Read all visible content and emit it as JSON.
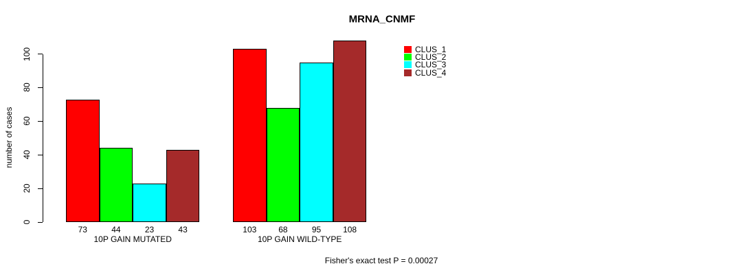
{
  "chart_data": {
    "type": "bar",
    "title": "MRNA_CNMF",
    "ylabel": "number of cases",
    "xlabel": "",
    "ylim": [
      0,
      100
    ],
    "yticks": [
      0,
      20,
      40,
      60,
      80,
      100
    ],
    "grid": false,
    "background": "#FFFFFF",
    "legend_position": "top-right",
    "show_bar_values": true,
    "categories": [
      "10P GAIN MUTATED",
      "10P GAIN WILD-TYPE"
    ],
    "series": [
      {
        "name": "CLUS_1",
        "color": "#FF0000",
        "values": [
          73,
          103
        ]
      },
      {
        "name": "CLUS_2",
        "color": "#00FF00",
        "values": [
          44,
          68
        ]
      },
      {
        "name": "CLUS_3",
        "color": "#00FFFF",
        "values": [
          23,
          95
        ]
      },
      {
        "name": "CLUS_4",
        "color": "#A52A2A",
        "values": [
          43,
          108
        ]
      }
    ],
    "annotation": "Fisher's exact test P = 0.00027"
  }
}
